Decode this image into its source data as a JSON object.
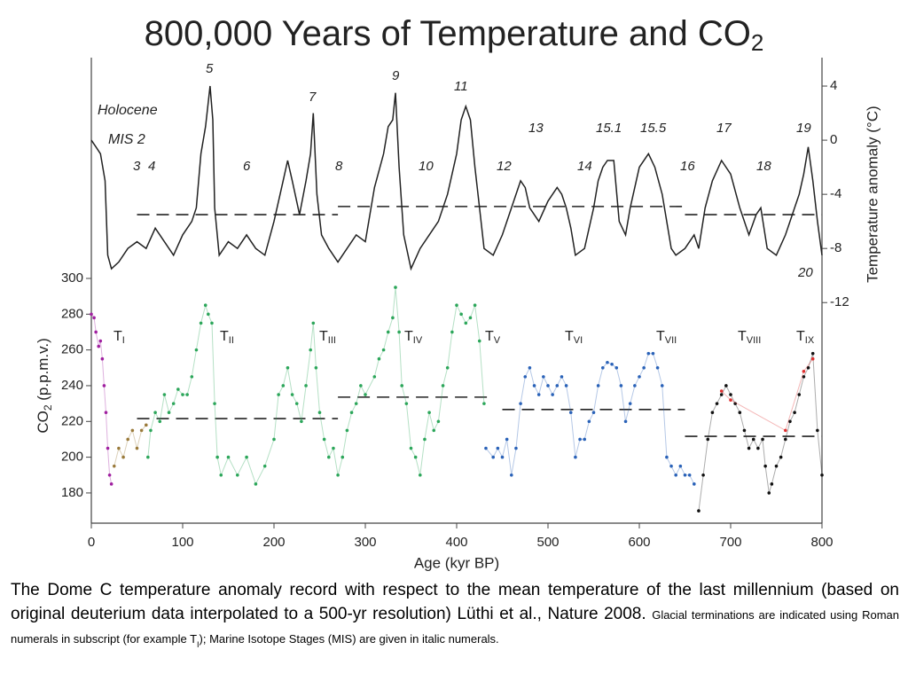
{
  "title": {
    "main": "800,000 Years of Temperature and CO",
    "sub": "2"
  },
  "chart_data": {
    "type": "line",
    "xlabel": "Age (kyr BP)",
    "ylabel": {
      "main": "CO",
      "sub": "2",
      "rest": " (p.p.m.v.)"
    },
    "y2label": "Temperature anomaly (°C)",
    "xlim": [
      0,
      800
    ],
    "xticks": [
      0,
      100,
      200,
      300,
      400,
      500,
      600,
      700,
      800
    ],
    "ylim": [
      163.1,
      423.5
    ],
    "yticks": [
      180,
      200,
      220,
      240,
      260,
      280,
      300
    ],
    "y2lim": [
      -28.3,
      6.1
    ],
    "y2ticks": [
      4,
      0,
      -4,
      -8,
      -12
    ],
    "series": [
      {
        "axis": "y2",
        "color": "#222222",
        "style": "line",
        "x": [
          0,
          5,
          10,
          15,
          18,
          22,
          30,
          40,
          50,
          60,
          70,
          80,
          90,
          100,
          110,
          115,
          120,
          125,
          130,
          133,
          135,
          140,
          150,
          160,
          170,
          180,
          190,
          200,
          210,
          215,
          220,
          228,
          235,
          240,
          243,
          247,
          252,
          260,
          270,
          280,
          290,
          300,
          310,
          320,
          325,
          330,
          333,
          337,
          342,
          350,
          360,
          370,
          380,
          390,
          400,
          405,
          410,
          415,
          420,
          425,
          430,
          440,
          450,
          460,
          470,
          475,
          480,
          490,
          500,
          510,
          515,
          520,
          525,
          530,
          540,
          550,
          555,
          560,
          565,
          572,
          578,
          585,
          590,
          600,
          610,
          617,
          625,
          635,
          640,
          650,
          660,
          665,
          672,
          680,
          690,
          700,
          710,
          720,
          728,
          733,
          740,
          750,
          760,
          770,
          775,
          780,
          785,
          790,
          795,
          800
        ],
        "values": [
          0,
          -0.5,
          -1,
          -3,
          -8.5,
          -9.5,
          -9,
          -8,
          -7.5,
          -8,
          -6.5,
          -7.5,
          -8.5,
          -7,
          -6,
          -5,
          -1,
          1,
          4,
          1.5,
          -5,
          -8.5,
          -7.5,
          -8,
          -7,
          -8,
          -8.5,
          -6,
          -3,
          -1.5,
          -3,
          -5.5,
          -3,
          -1,
          2,
          -4,
          -7,
          -8,
          -9,
          -8,
          -7,
          -7.5,
          -3.5,
          -1,
          1,
          1.5,
          3.5,
          -2,
          -7,
          -9.5,
          -8,
          -7,
          -6,
          -4,
          -1,
          1.5,
          2.5,
          1.5,
          -2,
          -5,
          -8,
          -8.5,
          -7,
          -5,
          -3,
          -3.5,
          -5,
          -6,
          -4.5,
          -3.5,
          -4,
          -5,
          -6.5,
          -8.5,
          -8,
          -5,
          -3,
          -2,
          -1.5,
          -1.5,
          -6,
          -7,
          -5,
          -2,
          -1,
          -2,
          -4,
          -8,
          -8.5,
          -8,
          -7,
          -8,
          -5,
          -3,
          -1.5,
          -2.5,
          -5,
          -7,
          -5.5,
          -5,
          -8,
          -8.5,
          -7,
          -5,
          -4,
          -2.5,
          -0.5,
          -3,
          -6,
          -8.5
        ]
      },
      {
        "axis": "y",
        "color": "#a020a0",
        "style": "dots",
        "x": [
          0,
          3,
          5,
          8,
          10,
          12,
          14,
          16,
          18,
          20,
          22
        ],
        "values": [
          280,
          278,
          270,
          262,
          265,
          255,
          240,
          225,
          205,
          190,
          185
        ]
      },
      {
        "axis": "y",
        "color": "#9a7a3a",
        "style": "dots",
        "x": [
          25,
          30,
          35,
          40,
          45,
          50,
          55,
          60
        ],
        "values": [
          195,
          205,
          200,
          210,
          215,
          205,
          215,
          218
        ]
      },
      {
        "axis": "y",
        "color": "#2ca65a",
        "style": "dots",
        "x": [
          62,
          65,
          70,
          75,
          80,
          85,
          90,
          95,
          100,
          105,
          110,
          115,
          120,
          125,
          128,
          132,
          135,
          138,
          142,
          150,
          160,
          170,
          180,
          190,
          200,
          205,
          210,
          215,
          220,
          225,
          230,
          235,
          240,
          243,
          246,
          250,
          255,
          260,
          265,
          270,
          275,
          280,
          285,
          290,
          295,
          300,
          310,
          315,
          320,
          325,
          330,
          333,
          337,
          340,
          345,
          350,
          355,
          360,
          365,
          370,
          375,
          380,
          385,
          390,
          395,
          400,
          405,
          410,
          415,
          420,
          425,
          430
        ],
        "values": [
          200,
          215,
          225,
          220,
          235,
          225,
          230,
          238,
          235,
          235,
          245,
          260,
          275,
          285,
          280,
          275,
          230,
          200,
          190,
          200,
          190,
          200,
          185,
          195,
          210,
          235,
          240,
          250,
          235,
          230,
          220,
          240,
          260,
          275,
          250,
          225,
          210,
          200,
          205,
          190,
          200,
          215,
          225,
          230,
          240,
          235,
          245,
          255,
          260,
          270,
          278,
          295,
          270,
          240,
          230,
          205,
          200,
          190,
          210,
          225,
          215,
          220,
          240,
          250,
          270,
          285,
          280,
          275,
          278,
          285,
          265,
          230
        ]
      },
      {
        "axis": "y",
        "color": "#2a62b8",
        "style": "dots",
        "x": [
          432,
          440,
          445,
          450,
          455,
          460,
          465,
          470,
          475,
          480,
          485,
          490,
          495,
          500,
          505,
          510,
          515,
          520,
          525,
          530,
          535,
          540,
          545,
          550,
          555,
          560,
          565,
          570,
          575,
          580,
          585,
          590,
          595,
          600,
          605,
          610,
          615,
          620,
          625,
          630,
          635,
          640,
          645,
          650,
          655,
          660
        ],
        "values": [
          205,
          200,
          205,
          200,
          210,
          190,
          205,
          230,
          245,
          250,
          240,
          235,
          245,
          240,
          235,
          240,
          245,
          240,
          225,
          200,
          210,
          210,
          220,
          225,
          240,
          250,
          253,
          252,
          250,
          240,
          220,
          230,
          240,
          245,
          250,
          258,
          258,
          250,
          240,
          200,
          195,
          190,
          195,
          190,
          190,
          185
        ]
      },
      {
        "axis": "y",
        "color": "#111111",
        "style": "dots",
        "x": [
          665,
          670,
          675,
          680,
          685,
          690,
          695,
          700,
          705,
          710,
          715,
          720,
          725,
          730,
          735,
          738,
          742,
          745,
          750,
          755,
          760,
          765,
          770,
          775,
          780,
          785,
          790,
          795,
          800
        ],
        "values": [
          170,
          190,
          210,
          225,
          230,
          235,
          240,
          235,
          230,
          225,
          215,
          205,
          210,
          205,
          210,
          195,
          180,
          185,
          195,
          200,
          210,
          220,
          225,
          235,
          245,
          250,
          258,
          215,
          190
        ]
      },
      {
        "axis": "y",
        "color": "#e03030",
        "style": "dots",
        "x": [
          690,
          700,
          760,
          780,
          790
        ],
        "values": [
          237,
          232,
          215,
          248,
          255
        ]
      }
    ],
    "reference_lines": [
      {
        "axis": "y2",
        "x": [
          50,
          270
        ],
        "value": -5.5
      },
      {
        "axis": "y2",
        "x": [
          270,
          650
        ],
        "value": -4.9
      },
      {
        "axis": "y2",
        "x": [
          650,
          800
        ],
        "value": -5.5
      },
      {
        "axis": "y",
        "x": [
          50,
          270
        ],
        "value": 221.6
      },
      {
        "axis": "y",
        "x": [
          270,
          440
        ],
        "value": 233.6
      },
      {
        "axis": "y",
        "x": [
          450,
          650
        ],
        "value": 226.7
      },
      {
        "axis": "y",
        "x": [
          650,
          800
        ],
        "value": 211.7
      }
    ],
    "annotations": [
      "Holocene",
      "MIS 2",
      "3",
      "4",
      "5",
      "6",
      "7",
      "8",
      "9",
      "10",
      "11",
      "12",
      "13",
      "14",
      "15.1",
      "15.5",
      "16",
      "17",
      "18",
      "19",
      "20"
    ],
    "terminations": [
      {
        "main": "T",
        "sub": "I"
      },
      {
        "main": "T",
        "sub": "II"
      },
      {
        "main": "T",
        "sub": "III"
      },
      {
        "main": "T",
        "sub": "IV"
      },
      {
        "main": "T",
        "sub": "V"
      },
      {
        "main": "T",
        "sub": "VI"
      },
      {
        "main": "T",
        "sub": "VII"
      },
      {
        "main": "T",
        "sub": "VIII"
      },
      {
        "main": "T",
        "sub": "IX"
      }
    ]
  },
  "caption": {
    "main": "The Dome C temperature anomaly record with respect to the mean temperature of the last millennium (based on original deuterium data interpolated to a 500-yr resolution) Lüthi et al., Nature 2008.",
    "small_1": "Glacial terminations are indicated using Roman numerals in subscript (for example T",
    "small_sub": "I",
    "small_2": "); Marine Isotope Stages (MIS) are given in italic numerals."
  }
}
